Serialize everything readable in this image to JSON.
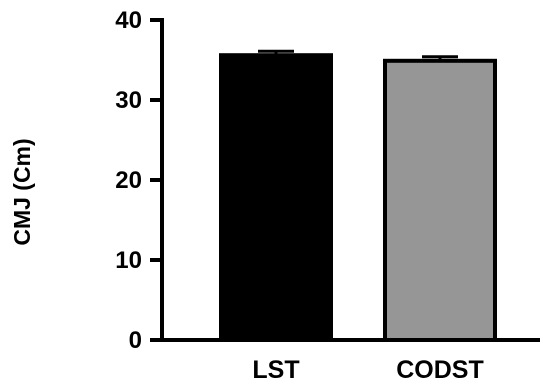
{
  "chart_data": {
    "type": "bar",
    "categories": [
      "LST",
      "CODST"
    ],
    "values": [
      35.6,
      34.9
    ],
    "errors": [
      0.5,
      0.5
    ],
    "ylabel": "CMJ (Cm)",
    "xlabel": "",
    "ylim": [
      0,
      40
    ],
    "yticks": [
      0,
      10,
      20,
      30,
      40
    ],
    "grid": false,
    "bar_colors": [
      "#000000",
      "#969696"
    ],
    "edge_color": "#000000"
  }
}
